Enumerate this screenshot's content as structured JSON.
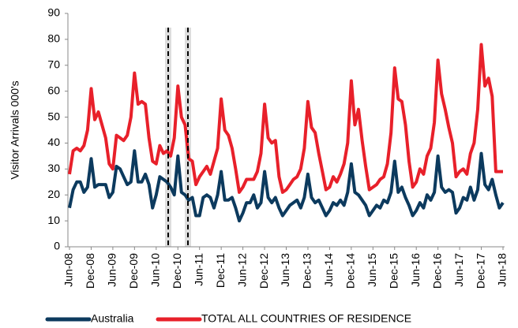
{
  "chart_data": {
    "type": "line",
    "y_label": "Visitor Arrivals 000's",
    "categories": [
      "Jun-08",
      null,
      null,
      null,
      null,
      null,
      "Dec-08",
      null,
      null,
      null,
      null,
      null,
      "Jun-09",
      null,
      null,
      null,
      null,
      null,
      "Dec-09",
      null,
      null,
      null,
      null,
      null,
      "Jun-10",
      null,
      null,
      null,
      null,
      null,
      "Dec-10",
      null,
      null,
      null,
      null,
      null,
      "Jun-11",
      null,
      null,
      null,
      null,
      null,
      "Dec-11",
      null,
      null,
      null,
      null,
      null,
      "Jun-12",
      null,
      null,
      null,
      null,
      null,
      "Dec-12",
      null,
      null,
      null,
      null,
      null,
      "Jun-13",
      null,
      null,
      null,
      null,
      null,
      "Dec-13",
      null,
      null,
      null,
      null,
      null,
      "Jun-14",
      null,
      null,
      null,
      null,
      null,
      "Dec-14",
      null,
      null,
      null,
      null,
      null,
      "Jun-15",
      null,
      null,
      null,
      null,
      null,
      "Dec-15",
      null,
      null,
      null,
      null,
      null,
      "Jun-16",
      null,
      null,
      null,
      null,
      null,
      "Dec-16",
      null,
      null,
      null,
      null,
      null,
      "Jun-17",
      null,
      null,
      null,
      null,
      null,
      "Dec-17",
      null,
      null,
      null,
      null,
      null,
      "Jun-18"
    ],
    "series": [
      {
        "name": "Australia",
        "color": "#0c3a5e",
        "values": [
          15,
          22,
          25,
          25,
          21,
          23,
          34,
          23,
          24,
          24,
          24,
          19,
          21,
          31,
          30,
          27,
          24,
          25,
          37,
          25,
          25,
          28,
          24,
          15,
          20,
          27,
          26,
          25,
          23,
          20,
          35,
          21,
          20,
          18,
          19,
          12,
          12,
          19,
          20,
          19,
          15,
          20,
          29,
          18,
          18,
          19,
          15,
          10,
          13,
          17,
          17,
          20,
          15,
          17,
          29,
          19,
          17,
          19,
          15,
          12,
          14,
          16,
          17,
          18,
          15,
          19,
          28,
          19,
          17,
          18,
          15,
          12,
          14,
          17,
          16,
          18,
          16,
          21,
          32,
          21,
          20,
          18,
          16,
          12,
          14,
          16,
          15,
          18,
          17,
          21,
          33,
          21,
          23,
          19,
          16,
          12,
          14,
          17,
          15,
          20,
          18,
          21,
          35,
          23,
          21,
          22,
          21,
          13,
          15,
          19,
          18,
          23,
          18,
          22,
          36,
          24,
          22,
          26,
          20,
          15,
          17
        ]
      },
      {
        "name": "TOTAL ALL COUNTRIES OF RESIDENCE",
        "color": "#e8202a",
        "values": [
          28,
          37,
          38,
          37,
          39,
          45,
          61,
          49,
          52,
          47,
          42,
          32,
          30,
          43,
          42,
          41,
          43,
          50,
          67,
          55,
          56,
          55,
          42,
          33,
          32,
          39,
          36,
          37,
          35,
          42,
          62,
          50,
          47,
          34,
          33,
          24,
          27,
          29,
          31,
          28,
          33,
          38,
          57,
          45,
          43,
          38,
          30,
          21,
          23,
          26,
          26,
          26,
          29,
          36,
          55,
          42,
          40,
          41,
          27,
          21,
          22,
          24,
          26,
          27,
          30,
          38,
          56,
          46,
          44,
          36,
          29,
          22,
          23,
          27,
          25,
          28,
          32,
          40,
          64,
          47,
          53,
          41,
          31,
          22,
          23,
          24,
          26,
          27,
          32,
          44,
          69,
          57,
          56,
          47,
          33,
          23,
          25,
          30,
          28,
          35,
          38,
          48,
          72,
          59,
          53,
          46,
          40,
          27,
          29,
          30,
          28,
          36,
          40,
          53,
          78,
          62,
          65,
          58,
          29,
          29,
          29
        ]
      }
    ],
    "ylim": [
      0,
      90
    ],
    "yticks": [
      0,
      10,
      20,
      30,
      40,
      50,
      60,
      70,
      80,
      90
    ]
  }
}
